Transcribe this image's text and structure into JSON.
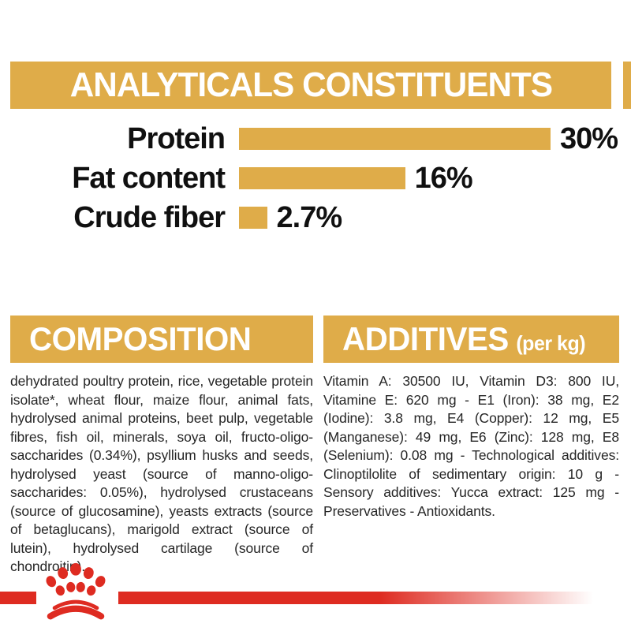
{
  "colors": {
    "gold": "#DFAC49",
    "red": "#DE2B21",
    "heading_text": "#ffffff",
    "label_text": "#101010",
    "body_text": "#262626"
  },
  "analytics": {
    "title": "ANALYTICALS CONSTITUENTS",
    "chart_data": {
      "type": "bar",
      "orientation": "horizontal",
      "categories": [
        "Protein",
        "Fat content",
        "Crude fiber"
      ],
      "values": [
        30,
        16,
        2.7
      ],
      "value_labels": [
        "30%",
        "16%",
        "2.7%"
      ],
      "xlim": [
        0,
        30
      ],
      "bar_color": "#DFAC49",
      "grid": false,
      "legend": "none"
    }
  },
  "composition": {
    "title": "COMPOSITION",
    "body": "dehydrated poultry protein, rice, vegetable protein isolate*, wheat flour, maize flour, animal fats, hydrolysed animal proteins, beet pulp, vegetable fibres, fish oil, minerals, soya oil, fructo-oligo-saccharides (0.34%), psyllium husks and seeds, hydrolysed yeast (source of manno-oligo-saccharides: 0.05%), hydrolysed crustaceans (source of glucosamine), yeasts extracts (source of betaglucans), marigold extract (source of lutein), hydrolysed cartilage (source of chondroitin)."
  },
  "additives": {
    "title": "ADDITIVES",
    "title_suffix": "(per kg)",
    "body": "Vitamin A: 30500 IU, Vitamin D3: 800 IU, Vitamine E: 620 mg - E1 (Iron): 38 mg, E2 (Iodine): 3.8 mg, E4 (Copper): 12 mg, E5 (Manganese): 49 mg, E6 (Zinc): 128 mg, E8 (Selenium): 0.08 mg - Technological additives: Clinoptilolite of sedimentary origin: 10 g - Sensory additives: Yucca extract: 125 mg - Preservatives - Antioxidants."
  },
  "footer": {
    "logo": "royal-canin-crown"
  }
}
